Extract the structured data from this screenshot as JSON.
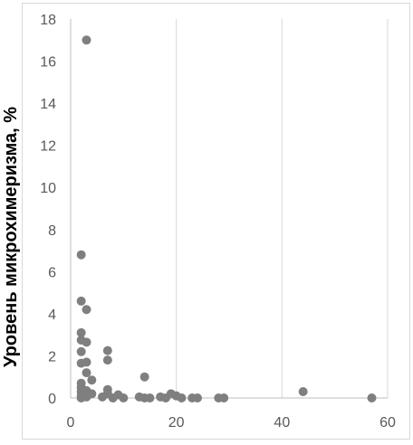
{
  "chart_data": {
    "type": "scatter",
    "title": "",
    "xlabel": "",
    "ylabel": "Уровень микрохимеризма, %",
    "xlim": [
      0,
      60
    ],
    "ylim": [
      0,
      18
    ],
    "x_ticks": [
      "0",
      "20",
      "40",
      "60"
    ],
    "y_ticks": [
      "0",
      "2",
      "4",
      "6",
      "8",
      "10",
      "12",
      "14",
      "16",
      "18"
    ],
    "grid": "vertical",
    "legend": "none",
    "colors": {
      "marker": "#7f7f7f",
      "grid": "#d9d9d9",
      "axis": "#bfbfbf",
      "tick_text": "#595959"
    },
    "series": [
      {
        "points": [
          [
            3,
            17.0
          ],
          [
            2,
            6.8
          ],
          [
            2,
            4.6
          ],
          [
            3,
            4.2
          ],
          [
            2,
            3.1
          ],
          [
            2,
            2.75
          ],
          [
            3,
            2.65
          ],
          [
            2,
            2.2
          ],
          [
            7,
            2.25
          ],
          [
            7,
            1.8
          ],
          [
            2,
            1.65
          ],
          [
            3,
            1.7
          ],
          [
            3,
            1.2
          ],
          [
            4,
            0.85
          ],
          [
            2,
            0.7
          ],
          [
            2,
            0.5
          ],
          [
            2,
            0.3
          ],
          [
            3,
            0.35
          ],
          [
            4,
            0.2
          ],
          [
            2,
            0.1
          ],
          [
            3,
            0.05
          ],
          [
            2,
            0.0
          ],
          [
            7,
            0.4
          ],
          [
            7,
            0.2
          ],
          [
            6,
            0.05
          ],
          [
            8,
            0.0
          ],
          [
            9,
            0.15
          ],
          [
            10,
            0.0
          ],
          [
            14,
            1.0
          ],
          [
            13,
            0.05
          ],
          [
            14,
            0.0
          ],
          [
            15,
            0.0
          ],
          [
            17,
            0.05
          ],
          [
            18,
            0.0
          ],
          [
            19,
            0.2
          ],
          [
            20,
            0.1
          ],
          [
            21,
            0.0
          ],
          [
            23,
            0.0
          ],
          [
            24,
            0.0
          ],
          [
            28,
            0.0
          ],
          [
            29,
            0.0
          ],
          [
            44,
            0.3
          ],
          [
            57,
            0.0
          ]
        ]
      }
    ]
  }
}
